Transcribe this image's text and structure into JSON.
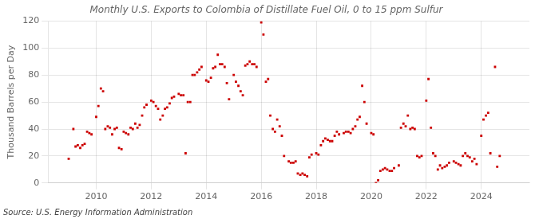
{
  "chart_data": {
    "type": "scatter",
    "title": "Monthly U.S. Exports to Colombia of Distillate Fuel Oil, 0 to 15 ppm Sulfur",
    "ylabel": "Thousand Barrels per Day",
    "annotations": [
      "Source: U.S. Energy Information Administration"
    ],
    "color": "#cc0000",
    "marker": "square",
    "grid": true,
    "xlim": [
      2008.25,
      2025.75
    ],
    "xticks": [
      2010,
      2012,
      2014,
      2016,
      2018,
      2020,
      2022,
      2024
    ],
    "ylim": [
      0,
      120
    ],
    "yticks": [
      0,
      20,
      40,
      60,
      80,
      100,
      120
    ],
    "x": [
      2009.0,
      2009.17,
      2009.25,
      2009.33,
      2009.42,
      2009.5,
      2009.58,
      2009.67,
      2009.75,
      2009.83,
      2010.0,
      2010.08,
      2010.17,
      2010.25,
      2010.33,
      2010.42,
      2010.5,
      2010.58,
      2010.67,
      2010.75,
      2010.83,
      2010.92,
      2011.0,
      2011.08,
      2011.17,
      2011.25,
      2011.33,
      2011.42,
      2011.5,
      2011.58,
      2011.67,
      2011.75,
      2011.83,
      2012.0,
      2012.08,
      2012.17,
      2012.25,
      2012.33,
      2012.42,
      2012.5,
      2012.58,
      2012.67,
      2012.75,
      2012.83,
      2013.0,
      2013.08,
      2013.17,
      2013.25,
      2013.33,
      2013.42,
      2013.5,
      2013.58,
      2013.67,
      2013.75,
      2013.83,
      2014.0,
      2014.08,
      2014.17,
      2014.25,
      2014.33,
      2014.42,
      2014.5,
      2014.58,
      2014.67,
      2014.75,
      2014.83,
      2015.0,
      2015.08,
      2015.17,
      2015.25,
      2015.33,
      2015.42,
      2015.5,
      2015.58,
      2015.67,
      2015.75,
      2015.83,
      2016.0,
      2016.08,
      2016.17,
      2016.25,
      2016.33,
      2016.42,
      2016.5,
      2016.58,
      2016.67,
      2016.75,
      2016.83,
      2017.0,
      2017.08,
      2017.17,
      2017.25,
      2017.33,
      2017.42,
      2017.5,
      2017.58,
      2017.67,
      2017.75,
      2017.83,
      2018.0,
      2018.08,
      2018.17,
      2018.25,
      2018.33,
      2018.42,
      2018.5,
      2018.58,
      2018.67,
      2018.75,
      2018.83,
      2019.0,
      2019.08,
      2019.17,
      2019.25,
      2019.33,
      2019.42,
      2019.5,
      2019.58,
      2019.67,
      2019.75,
      2019.83,
      2020.0,
      2020.08,
      2020.17,
      2020.25,
      2020.33,
      2020.42,
      2020.5,
      2020.58,
      2020.67,
      2020.75,
      2020.83,
      2021.0,
      2021.08,
      2021.17,
      2021.25,
      2021.33,
      2021.42,
      2021.5,
      2021.58,
      2021.67,
      2021.75,
      2021.83,
      2022.0,
      2022.08,
      2022.17,
      2022.25,
      2022.33,
      2022.42,
      2022.5,
      2022.58,
      2022.67,
      2022.75,
      2022.83,
      2023.0,
      2023.08,
      2023.17,
      2023.25,
      2023.33,
      2023.42,
      2023.5,
      2023.58,
      2023.67,
      2023.75,
      2023.83,
      2024.0,
      2024.08,
      2024.17,
      2024.25,
      2024.33,
      2024.5,
      2024.58,
      2024.67
    ],
    "values": [
      18,
      40,
      27,
      28,
      26,
      28,
      29,
      38,
      37,
      36,
      49,
      57,
      70,
      68,
      40,
      42,
      41,
      36,
      40,
      41,
      26,
      25,
      38,
      37,
      36,
      41,
      40,
      44,
      41,
      43,
      50,
      56,
      58,
      61,
      60,
      57,
      55,
      47,
      50,
      55,
      56,
      59,
      63,
      64,
      66,
      65,
      65,
      22,
      60,
      60,
      80,
      80,
      82,
      84,
      86,
      76,
      75,
      78,
      85,
      86,
      95,
      88,
      88,
      86,
      74,
      62,
      80,
      75,
      72,
      68,
      65,
      87,
      88,
      90,
      88,
      88,
      86,
      119,
      110,
      75,
      77,
      50,
      40,
      38,
      47,
      42,
      35,
      20,
      16,
      15,
      15,
      16,
      7,
      6,
      7,
      6,
      5,
      19,
      21,
      22,
      21,
      28,
      31,
      33,
      32,
      31,
      31,
      35,
      38,
      36,
      37,
      38,
      38,
      37,
      40,
      42,
      47,
      49,
      72,
      60,
      44,
      37,
      36,
      0,
      2,
      9,
      10,
      11,
      10,
      9,
      9,
      11,
      13,
      41,
      44,
      42,
      50,
      40,
      41,
      40,
      20,
      19,
      20,
      61,
      77,
      41,
      22,
      20,
      10,
      13,
      11,
      12,
      13,
      15,
      16,
      15,
      14,
      13,
      20,
      22,
      20,
      19,
      16,
      18,
      14,
      35,
      47,
      50,
      52,
      22,
      86,
      12,
      20
    ]
  }
}
